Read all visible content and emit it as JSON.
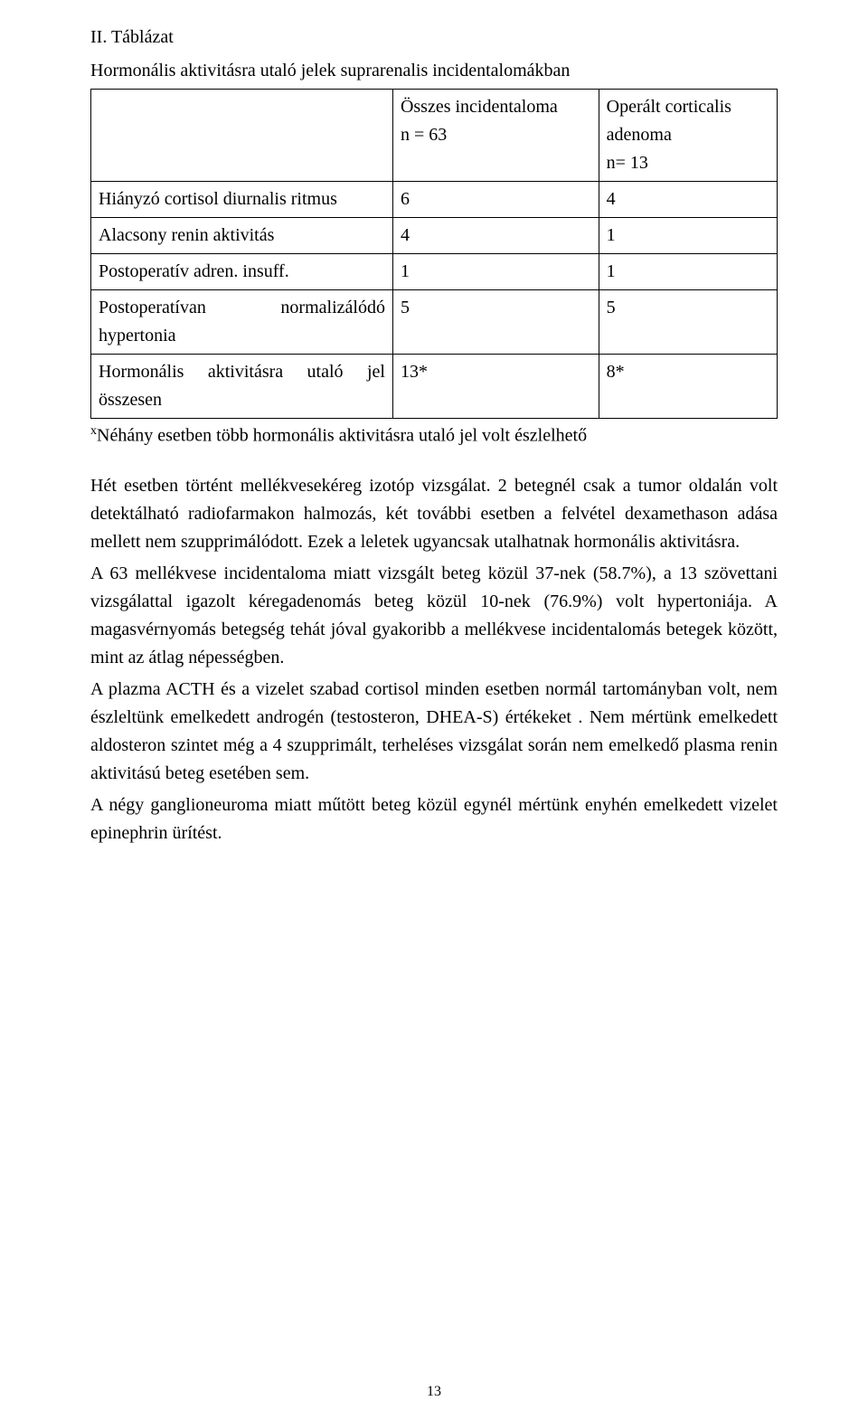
{
  "title_line": "II.      Táblázat",
  "table_caption": "Hormonális aktivitásra utaló jelek suprarenalis incidentalomákban",
  "table": {
    "header": {
      "col1_line1": "Összes incidentaloma",
      "col1_line2": "n = 63",
      "col2_line1": "Operált corticalis",
      "col2_line2": "adenoma",
      "col2_line3": "n= 13"
    },
    "rows": [
      {
        "label": "Hiányzó cortisol diurnalis ritmus",
        "c1": "6",
        "c2": "4"
      },
      {
        "label": "Alacsony renin aktivitás",
        "c1": "4",
        "c2": "1"
      },
      {
        "label": "Postoperatív adren. insuff.",
        "c1": "1",
        "c2": "1"
      },
      {
        "label": "Postoperatívan normalizálódó hypertonia",
        "c1": "5",
        "c2": "5"
      },
      {
        "label": "Hormonális aktivitásra utaló jel összesen",
        "c1": "13*",
        "c2": "8*"
      }
    ]
  },
  "footnote_sup": "x",
  "footnote_text": "Néhány esetben több hormonális aktivitásra utaló jel volt észlelhető",
  "paragraphs": {
    "p1": "Hét esetben történt mellékvesekéreg izotóp vizsgálat. 2 betegnél csak a tumor oldalán volt detektálható radiofarmakon halmozás, két további esetben a felvétel dexamethason adása mellett nem szupprimálódott. Ezek a leletek ugyancsak utalhatnak hormonális aktivitásra.",
    "p2": "A 63 mellékvese incidentaloma miatt vizsgált beteg közül 37-nek (58.7%), a 13 szövettani vizsgálattal igazolt kéregadenomás beteg közül 10-nek  (76.9%) volt hypertoniája. A magasvérnyomás betegség tehát jóval gyakoribb a mellékvese incidentalomás betegek között, mint az átlag népességben.",
    "p3": "A plazma ACTH és a vizelet szabad cortisol minden esetben normál tartományban volt, nem észleltünk emelkedett androgén (testosteron, DHEA-S) értékeket . Nem mértünk emelkedett aldosteron szintet még a 4 szupprimált, terheléses vizsgálat során nem emelkedő plasma renin aktivitású beteg esetében sem.",
    "p4": "A négy ganglioneuroma miatt műtött beteg közül egynél mértünk enyhén emelkedett vizelet epinephrin ürítést."
  },
  "page_number": "13"
}
